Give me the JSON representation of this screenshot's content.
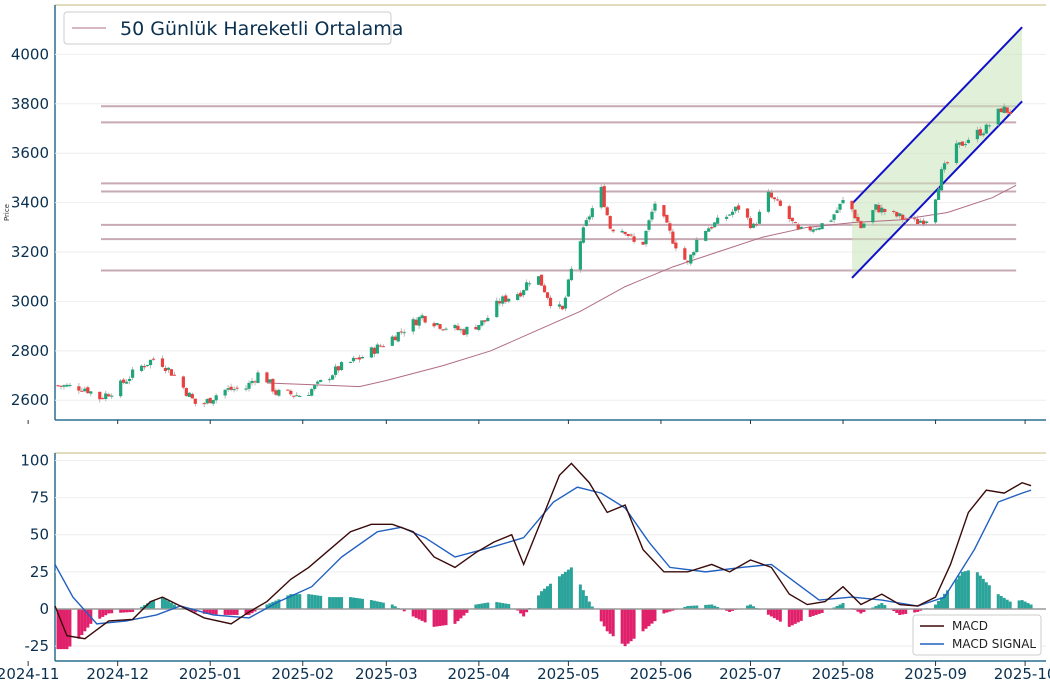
{
  "chart_data": [
    {
      "type": "candlestick",
      "ylabel": "Price",
      "ylim": [
        2520,
        4200
      ],
      "yticks": [
        2600,
        2800,
        3000,
        3200,
        3400,
        3600,
        3800,
        4000
      ],
      "legend": {
        "label": "50 Günlük Hareketli Ortalama",
        "placement": "top-left"
      },
      "x_range": [
        "2024-11-10",
        "2025-10-08"
      ],
      "up_color": "#1fa57a",
      "down_color": "#e8413f",
      "ma_color": "#b06c86",
      "hline_color": "#c7a9b4",
      "channel_color": "#1010cc",
      "channel_fill": "#c8e4b8",
      "horizontal_levels": [
        3790,
        3725,
        3478,
        3445,
        3310,
        3252,
        3125
      ],
      "horizontal_range": [
        "2024-11-10",
        "2025-09-28"
      ],
      "channel": {
        "start": "2025-08-04",
        "end": "2025-09-30",
        "upper": [
          3395,
          4110
        ],
        "lower": [
          3095,
          3810
        ]
      },
      "price_path": [
        [
          "2024-11-10",
          2660
        ],
        [
          "2024-11-20",
          2650
        ],
        [
          "2024-11-25",
          2610
        ],
        [
          "2024-12-01",
          2650
        ],
        [
          "2024-12-08",
          2730
        ],
        [
          "2024-12-14",
          2775
        ],
        [
          "2024-12-20",
          2700
        ],
        [
          "2024-12-28",
          2570
        ],
        [
          "2025-01-05",
          2640
        ],
        [
          "2025-01-13",
          2650
        ],
        [
          "2025-01-18",
          2720
        ],
        [
          "2025-01-23",
          2630
        ],
        [
          "2025-02-01",
          2620
        ],
        [
          "2025-02-06",
          2660
        ],
        [
          "2025-02-13",
          2730
        ],
        [
          "2025-02-20",
          2770
        ],
        [
          "2025-02-27",
          2820
        ],
        [
          "2025-03-06",
          2880
        ],
        [
          "2025-03-13",
          2940
        ],
        [
          "2025-03-20",
          2900
        ],
        [
          "2025-03-27",
          2880
        ],
        [
          "2025-04-03",
          2920
        ],
        [
          "2025-04-08",
          3000
        ],
        [
          "2025-04-15",
          3040
        ],
        [
          "2025-04-20",
          3120
        ],
        [
          "2025-04-25",
          3000
        ],
        [
          "2025-04-29",
          2960
        ],
        [
          "2025-05-03",
          3180
        ],
        [
          "2025-05-08",
          3350
        ],
        [
          "2025-05-12",
          3450
        ],
        [
          "2025-05-15",
          3300
        ],
        [
          "2025-05-20",
          3290
        ],
        [
          "2025-05-25",
          3200
        ],
        [
          "2025-05-30",
          3400
        ],
        [
          "2025-06-05",
          3250
        ],
        [
          "2025-06-10",
          3150
        ],
        [
          "2025-06-14",
          3280
        ],
        [
          "2025-06-20",
          3320
        ],
        [
          "2025-06-27",
          3380
        ],
        [
          "2025-07-02",
          3300
        ],
        [
          "2025-07-07",
          3430
        ],
        [
          "2025-07-12",
          3370
        ],
        [
          "2025-07-17",
          3280
        ],
        [
          "2025-07-22",
          3300
        ],
        [
          "2025-07-27",
          3320
        ],
        [
          "2025-08-02",
          3420
        ],
        [
          "2025-08-07",
          3300
        ],
        [
          "2025-08-12",
          3380
        ],
        [
          "2025-08-18",
          3350
        ],
        [
          "2025-08-25",
          3320
        ],
        [
          "2025-08-30",
          3340
        ],
        [
          "2025-09-03",
          3520
        ],
        [
          "2025-09-08",
          3620
        ],
        [
          "2025-09-13",
          3670
        ],
        [
          "2025-09-18",
          3700
        ],
        [
          "2025-09-23",
          3780
        ],
        [
          "2025-09-28",
          3760
        ]
      ],
      "ma_path": [
        [
          "2025-01-20",
          2670
        ],
        [
          "2025-02-10",
          2660
        ],
        [
          "2025-02-20",
          2655
        ],
        [
          "2025-03-01",
          2680
        ],
        [
          "2025-03-20",
          2740
        ],
        [
          "2025-04-05",
          2800
        ],
        [
          "2025-04-20",
          2880
        ],
        [
          "2025-05-05",
          2960
        ],
        [
          "2025-05-20",
          3060
        ],
        [
          "2025-06-05",
          3140
        ],
        [
          "2025-06-20",
          3200
        ],
        [
          "2025-07-05",
          3260
        ],
        [
          "2025-07-20",
          3300
        ],
        [
          "2025-08-05",
          3320
        ],
        [
          "2025-08-20",
          3330
        ],
        [
          "2025-09-05",
          3360
        ],
        [
          "2025-09-20",
          3420
        ],
        [
          "2025-09-28",
          3470
        ]
      ]
    },
    {
      "type": "macd",
      "ylim": [
        -35,
        105
      ],
      "yticks": [
        -25,
        0,
        25,
        50,
        75,
        100
      ],
      "xticks": [
        "2024-11",
        "2024-12",
        "2025-01",
        "2025-02",
        "2025-03",
        "2025-04",
        "2025-05",
        "2025-06",
        "2025-07",
        "2025-08",
        "2025-09",
        "2025-10"
      ],
      "x_range": [
        "2024-11-10",
        "2025-10-08"
      ],
      "legend": {
        "entries": [
          "MACD",
          "MACD SIGNAL"
        ],
        "placement": "bottom-right"
      },
      "macd_color": "#3a0a0a",
      "signal_color": "#2060c0",
      "hist_pos_color": "#2aa39a",
      "hist_neg_color": "#e0206a",
      "macd": [
        [
          "2024-11-10",
          2
        ],
        [
          "2024-11-14",
          -18
        ],
        [
          "2024-11-20",
          -20
        ],
        [
          "2024-11-28",
          -8
        ],
        [
          "2024-12-06",
          -7
        ],
        [
          "2024-12-12",
          5
        ],
        [
          "2024-12-16",
          8
        ],
        [
          "2024-12-22",
          2
        ],
        [
          "2024-12-30",
          -6
        ],
        [
          "2025-01-08",
          -10
        ],
        [
          "2025-01-14",
          -2
        ],
        [
          "2025-01-20",
          5
        ],
        [
          "2025-01-28",
          20
        ],
        [
          "2025-02-03",
          28
        ],
        [
          "2025-02-10",
          40
        ],
        [
          "2025-02-17",
          52
        ],
        [
          "2025-02-24",
          57
        ],
        [
          "2025-03-03",
          57
        ],
        [
          "2025-03-10",
          52
        ],
        [
          "2025-03-17",
          35
        ],
        [
          "2025-03-24",
          28
        ],
        [
          "2025-03-31",
          38
        ],
        [
          "2025-04-06",
          45
        ],
        [
          "2025-04-12",
          50
        ],
        [
          "2025-04-16",
          30
        ],
        [
          "2025-04-22",
          60
        ],
        [
          "2025-04-28",
          90
        ],
        [
          "2025-05-02",
          98
        ],
        [
          "2025-05-08",
          85
        ],
        [
          "2025-05-14",
          65
        ],
        [
          "2025-05-20",
          70
        ],
        [
          "2025-05-26",
          40
        ],
        [
          "2025-06-02",
          25
        ],
        [
          "2025-06-10",
          25
        ],
        [
          "2025-06-18",
          30
        ],
        [
          "2025-06-24",
          25
        ],
        [
          "2025-07-01",
          33
        ],
        [
          "2025-07-08",
          28
        ],
        [
          "2025-07-14",
          10
        ],
        [
          "2025-07-20",
          3
        ],
        [
          "2025-07-26",
          5
        ],
        [
          "2025-08-01",
          15
        ],
        [
          "2025-08-07",
          3
        ],
        [
          "2025-08-14",
          10
        ],
        [
          "2025-08-20",
          3
        ],
        [
          "2025-08-26",
          2
        ],
        [
          "2025-09-01",
          8
        ],
        [
          "2025-09-06",
          30
        ],
        [
          "2025-09-12",
          65
        ],
        [
          "2025-09-18",
          80
        ],
        [
          "2025-09-24",
          78
        ],
        [
          "2025-09-30",
          85
        ],
        [
          "2025-10-03",
          83
        ]
      ],
      "signal": [
        [
          "2024-11-10",
          30
        ],
        [
          "2024-11-16",
          8
        ],
        [
          "2024-11-24",
          -10
        ],
        [
          "2024-12-04",
          -8
        ],
        [
          "2024-12-14",
          -4
        ],
        [
          "2024-12-22",
          2
        ],
        [
          "2025-01-02",
          -4
        ],
        [
          "2025-01-14",
          -6
        ],
        [
          "2025-01-24",
          5
        ],
        [
          "2025-02-04",
          15
        ],
        [
          "2025-02-14",
          35
        ],
        [
          "2025-02-26",
          52
        ],
        [
          "2025-03-06",
          55
        ],
        [
          "2025-03-14",
          48
        ],
        [
          "2025-03-24",
          35
        ],
        [
          "2025-04-06",
          42
        ],
        [
          "2025-04-16",
          48
        ],
        [
          "2025-04-26",
          72
        ],
        [
          "2025-05-04",
          82
        ],
        [
          "2025-05-12",
          78
        ],
        [
          "2025-05-20",
          68
        ],
        [
          "2025-05-28",
          45
        ],
        [
          "2025-06-04",
          28
        ],
        [
          "2025-06-16",
          25
        ],
        [
          "2025-06-28",
          28
        ],
        [
          "2025-07-08",
          30
        ],
        [
          "2025-07-16",
          18
        ],
        [
          "2025-07-24",
          6
        ],
        [
          "2025-08-04",
          8
        ],
        [
          "2025-08-14",
          6
        ],
        [
          "2025-08-26",
          2
        ],
        [
          "2025-09-04",
          8
        ],
        [
          "2025-09-14",
          40
        ],
        [
          "2025-09-22",
          72
        ],
        [
          "2025-09-30",
          78
        ],
        [
          "2025-10-03",
          80
        ]
      ],
      "histogram": [
        [
          "2024-11-10",
          -27
        ],
        [
          "2024-11-14",
          -27
        ],
        [
          "2024-11-18",
          -20
        ],
        [
          "2024-11-22",
          -10
        ],
        [
          "2024-11-28",
          -3
        ],
        [
          "2024-12-06",
          -2
        ],
        [
          "2024-12-12",
          5
        ],
        [
          "2024-12-16",
          8
        ],
        [
          "2024-12-20",
          3
        ],
        [
          "2024-12-28",
          -3
        ],
        [
          "2025-01-06",
          -4
        ],
        [
          "2025-01-14",
          -4
        ],
        [
          "2025-01-20",
          3
        ],
        [
          "2025-01-28",
          10
        ],
        [
          "2025-02-03",
          10
        ],
        [
          "2025-02-10",
          8
        ],
        [
          "2025-02-17",
          8
        ],
        [
          "2025-02-24",
          6
        ],
        [
          "2025-03-03",
          3
        ],
        [
          "2025-03-10",
          -5
        ],
        [
          "2025-03-17",
          -12
        ],
        [
          "2025-03-24",
          -10
        ],
        [
          "2025-03-31",
          3
        ],
        [
          "2025-04-06",
          5
        ],
        [
          "2025-04-12",
          3
        ],
        [
          "2025-04-16",
          -5
        ],
        [
          "2025-04-22",
          12
        ],
        [
          "2025-04-28",
          22
        ],
        [
          "2025-05-02",
          28
        ],
        [
          "2025-05-08",
          5
        ],
        [
          "2025-05-14",
          -15
        ],
        [
          "2025-05-20",
          -25
        ],
        [
          "2025-05-26",
          -15
        ],
        [
          "2025-06-02",
          -3
        ],
        [
          "2025-06-10",
          2
        ],
        [
          "2025-06-18",
          3
        ],
        [
          "2025-06-24",
          -2
        ],
        [
          "2025-07-01",
          3
        ],
        [
          "2025-07-08",
          -5
        ],
        [
          "2025-07-14",
          -12
        ],
        [
          "2025-07-20",
          -6
        ],
        [
          "2025-07-26",
          -2
        ],
        [
          "2025-08-01",
          4
        ],
        [
          "2025-08-07",
          -3
        ],
        [
          "2025-08-14",
          4
        ],
        [
          "2025-08-20",
          -4
        ],
        [
          "2025-08-26",
          -2
        ],
        [
          "2025-09-01",
          3
        ],
        [
          "2025-09-06",
          15
        ],
        [
          "2025-09-10",
          25
        ],
        [
          "2025-09-14",
          27
        ],
        [
          "2025-09-18",
          18
        ],
        [
          "2025-09-22",
          10
        ],
        [
          "2025-09-26",
          5
        ],
        [
          "2025-09-30",
          6
        ],
        [
          "2025-10-03",
          3
        ]
      ]
    }
  ]
}
